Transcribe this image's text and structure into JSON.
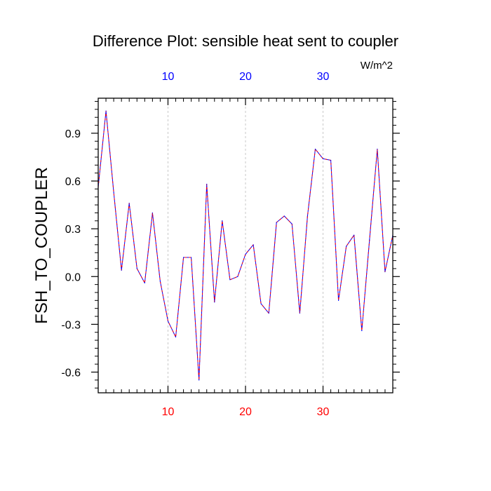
{
  "chart_data": {
    "type": "line",
    "title": "Difference Plot: sensible heat sent to coupler",
    "units_label": "W/m^2",
    "ylabel": "FSH_TO_COUPLER",
    "xlim": [
      1,
      39
    ],
    "ylim": [
      -0.73,
      1.12
    ],
    "yticks": [
      0.9,
      0.6,
      0.3,
      0.0,
      -0.3,
      -0.6
    ],
    "ytick_labels": [
      "0.9",
      "0.6",
      "0.3",
      "0.0",
      "-0.3",
      "-0.6"
    ],
    "xticks": [
      10,
      20,
      30
    ],
    "xtick_labels": [
      "10",
      "20",
      "30"
    ],
    "x_minor_step": 1,
    "y_minor_step": 0.05,
    "x_grid": true,
    "bottom_tick_color": "#ff0000",
    "top_tick_color": "#0000ff",
    "series": [
      {
        "color_a": "#0000ff",
        "color_b": "#ff0000",
        "x": [
          1,
          2,
          3,
          4,
          5,
          6,
          7,
          8,
          9,
          10,
          11,
          12,
          13,
          14,
          15,
          16,
          17,
          18,
          19,
          20,
          21,
          22,
          23,
          24,
          25,
          26,
          27,
          28,
          29,
          30,
          31,
          32,
          33,
          34,
          35,
          36,
          37,
          38,
          39
        ],
        "values": [
          0.56,
          1.04,
          0.53,
          0.04,
          0.46,
          0.05,
          -0.04,
          0.4,
          -0.03,
          -0.28,
          -0.38,
          0.12,
          0.12,
          -0.65,
          0.58,
          -0.16,
          0.35,
          -0.02,
          0.0,
          0.14,
          0.2,
          -0.17,
          -0.23,
          0.34,
          0.38,
          0.33,
          -0.23,
          0.38,
          0.8,
          0.74,
          0.73,
          -0.15,
          0.19,
          0.26,
          -0.34,
          0.23,
          0.8,
          0.03,
          0.26
        ]
      }
    ]
  }
}
